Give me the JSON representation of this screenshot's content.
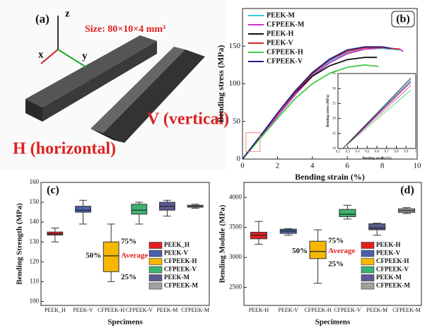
{
  "photo": {
    "label": "(a)",
    "axes": [
      "z",
      "x",
      "y"
    ],
    "size": "Size: 80×10×4 mm³",
    "v_label": "V (vertical)",
    "h_label": "H (horizontal)"
  },
  "chart_data": [
    {
      "type": "line",
      "label": "(b)",
      "xlabel": "Bending strain (%)",
      "ylabel": "Bending stress (MPa)",
      "xlim": [
        0,
        10
      ],
      "xticks": [
        0,
        2,
        4,
        6,
        8,
        10
      ],
      "ylim": [
        0,
        200
      ],
      "yticks": [
        0,
        50,
        100,
        150
      ],
      "legend": "upper left",
      "series": [
        {
          "name": "PEEK-M",
          "color": "#33ccee",
          "x": [
            0,
            1,
            2,
            3,
            4,
            5,
            6,
            7,
            8,
            9
          ],
          "values": [
            0,
            30,
            60,
            88,
            112,
            130,
            141,
            146,
            147,
            145
          ]
        },
        {
          "name": "CFPEEK-M",
          "color": "#cc33cc",
          "x": [
            0,
            1,
            2,
            3,
            4,
            5,
            6,
            7,
            8,
            9,
            9.2
          ],
          "values": [
            0,
            28,
            57,
            85,
            110,
            128,
            140,
            146,
            148,
            146,
            143
          ]
        },
        {
          "name": "PEEK-H",
          "color": "#111111",
          "x": [
            0,
            1,
            2,
            3,
            4,
            5,
            6,
            7,
            7.7
          ],
          "values": [
            0,
            30,
            60,
            88,
            110,
            124,
            132,
            135,
            135
          ]
        },
        {
          "name": "PEEK-V",
          "color": "#dd2222",
          "x": [
            0,
            1,
            2,
            3,
            4,
            5,
            6,
            7,
            8,
            9
          ],
          "values": [
            0,
            30,
            60,
            89,
            113,
            132,
            143,
            148,
            148,
            146
          ]
        },
        {
          "name": "CFPEEK-H",
          "color": "#44cc44",
          "x": [
            0,
            1,
            2,
            3,
            4,
            5,
            6,
            7,
            7.8
          ],
          "values": [
            0,
            27,
            54,
            80,
            100,
            114,
            122,
            125,
            123
          ]
        },
        {
          "name": "CFPEEK-V",
          "color": "#222288",
          "x": [
            0,
            1,
            2,
            3,
            4,
            5,
            6,
            7,
            8,
            8.5
          ],
          "values": [
            0,
            30,
            61,
            90,
            115,
            133,
            145,
            149,
            149,
            147
          ]
        }
      ]
    },
    {
      "type": "line",
      "xlabel": "Bending strain (%)",
      "ylabel": "Bending stress (MPa)",
      "xlim": [
        0.2,
        1.0
      ],
      "xticks": [
        0.2,
        0.3,
        0.4,
        0.5,
        0.6,
        0.7,
        0.8,
        0.9,
        1.0
      ],
      "ylim": [
        10,
        35
      ],
      "yticks": [
        10,
        15,
        20,
        25,
        30,
        35
      ],
      "series": [
        {
          "color": "#33ccee",
          "x": [
            0.25,
            0.95
          ],
          "values": [
            10,
            33
          ]
        },
        {
          "color": "#cc33cc",
          "x": [
            0.25,
            0.95
          ],
          "values": [
            10,
            31
          ]
        },
        {
          "color": "#111111",
          "x": [
            0.25,
            0.95
          ],
          "values": [
            10,
            33.5
          ]
        },
        {
          "color": "#dd2222",
          "x": [
            0.25,
            0.95
          ],
          "values": [
            10,
            32
          ]
        },
        {
          "color": "#44cc44",
          "x": [
            0.25,
            0.95
          ],
          "values": [
            10,
            29.5
          ]
        },
        {
          "color": "#222288",
          "x": [
            0.25,
            0.95
          ],
          "values": [
            10,
            32.5
          ]
        }
      ]
    },
    {
      "type": "box",
      "label": "(c)",
      "xlabel": "Specimens",
      "ylabel": "Bending Strength (MPa)",
      "categories": [
        "PEEK_H",
        "PEEK-V",
        "CFPEEK-H",
        "CFPEEK-V",
        "PEEK-M",
        "CFPEEK-M"
      ],
      "ylim": [
        98,
        160
      ],
      "yticks": [
        100,
        110,
        120,
        130,
        140,
        150,
        160
      ],
      "legend": "lower right",
      "annotations": {
        "q3": "75%",
        "median": "50%",
        "mean": "Average",
        "q1": "25%"
      },
      "series": [
        {
          "name": "PEEK_H",
          "color": "#e02020",
          "min": 130,
          "q1": 133.5,
          "median": 134,
          "q3": 135,
          "max": 137
        },
        {
          "name": "PEEK-V",
          "color": "#4a5fa8",
          "min": 139,
          "q1": 145,
          "median": 146,
          "q3": 148,
          "max": 151
        },
        {
          "name": "CFPEEK-H",
          "color": "#f5b700",
          "min": 110,
          "q1": 115,
          "median": 123,
          "q3": 130,
          "max": 139
        },
        {
          "name": "CFPEEK-V",
          "color": "#3cb371",
          "min": 139,
          "q1": 144,
          "median": 146,
          "q3": 149,
          "max": 150
        },
        {
          "name": "PEEK-M",
          "color": "#5a5a90",
          "min": 143,
          "q1": 146,
          "median": 148,
          "q3": 150,
          "max": 151
        },
        {
          "name": "CFPEEK-M",
          "color": "#a0a0a0",
          "min": 147,
          "q1": 147.5,
          "median": 148,
          "q3": 148.5,
          "max": 149
        }
      ]
    },
    {
      "type": "box",
      "label": "(d)",
      "xlabel": "Specimens",
      "ylabel": "Bending Module (MPa)",
      "categories": [
        "PEEK-H",
        "PEEK-V",
        "CFPEEK-H",
        "CFPEEK-V",
        "PEEK-M",
        "CFPEEK-M"
      ],
      "ylim": [
        2200,
        4250
      ],
      "yticks": [
        2500,
        3000,
        3500,
        4000
      ],
      "legend": "lower right",
      "annotations": {
        "q3": "75%",
        "median": "50%",
        "mean": "Average",
        "q1": "25%"
      },
      "series": [
        {
          "name": "PEEK-H",
          "color": "#e02020",
          "min": 3220,
          "q1": 3310,
          "median": 3370,
          "q3": 3420,
          "max": 3600
        },
        {
          "name": "PEEK-V",
          "color": "#4a5fa8",
          "min": 3370,
          "q1": 3400,
          "median": 3440,
          "q3": 3470,
          "max": 3480
        },
        {
          "name": "CFPEEK-H",
          "color": "#f5b700",
          "min": 2570,
          "q1": 2980,
          "median": 3100,
          "q3": 3270,
          "max": 3460
        },
        {
          "name": "CFPEEK-V",
          "color": "#3cb371",
          "min": 3640,
          "q1": 3680,
          "median": 3720,
          "q3": 3800,
          "max": 3870
        },
        {
          "name": "PEEK-M",
          "color": "#5a5a90",
          "min": 3370,
          "q1": 3460,
          "median": 3490,
          "q3": 3560,
          "max": 3570
        },
        {
          "name": "CFPEEK-M",
          "color": "#a0a0a0",
          "min": 3730,
          "q1": 3750,
          "median": 3780,
          "q3": 3810,
          "max": 3830
        }
      ]
    }
  ]
}
